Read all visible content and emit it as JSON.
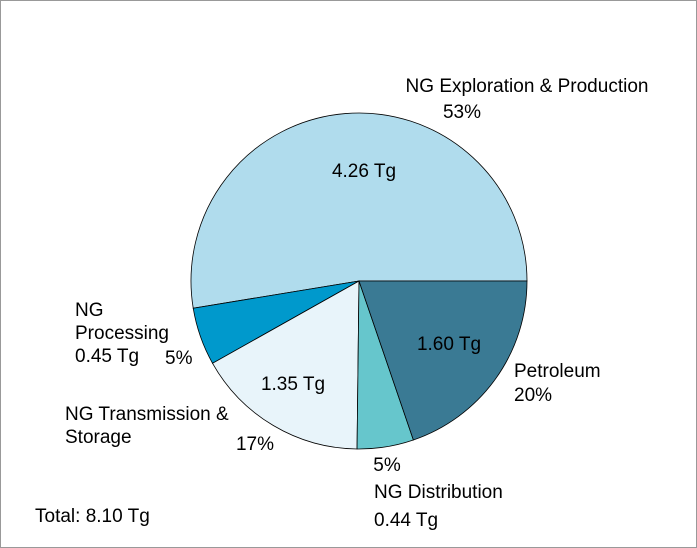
{
  "chart_data": {
    "type": "pie",
    "categories": [
      "NG Exploration & Production",
      "NG Processing",
      "NG Transmission & Storage",
      "NG Distribution",
      "Petroleum"
    ],
    "values": [
      4.26,
      0.45,
      1.35,
      0.44,
      1.6
    ],
    "value_labels": [
      "4.26 Tg",
      "0.45 Tg",
      "1.35 Tg",
      "0.44 Tg",
      "1.60 Tg"
    ],
    "percents": [
      53,
      5,
      17,
      5,
      20
    ],
    "percent_labels": [
      "53%",
      "5%",
      "17%",
      "5%",
      "20%"
    ],
    "colors": [
      "#b0dced",
      "#0099cc",
      "#e8f4fa",
      "#66c6cc",
      "#3a7a94"
    ],
    "annotation": "Total: 8.10 Tg"
  }
}
